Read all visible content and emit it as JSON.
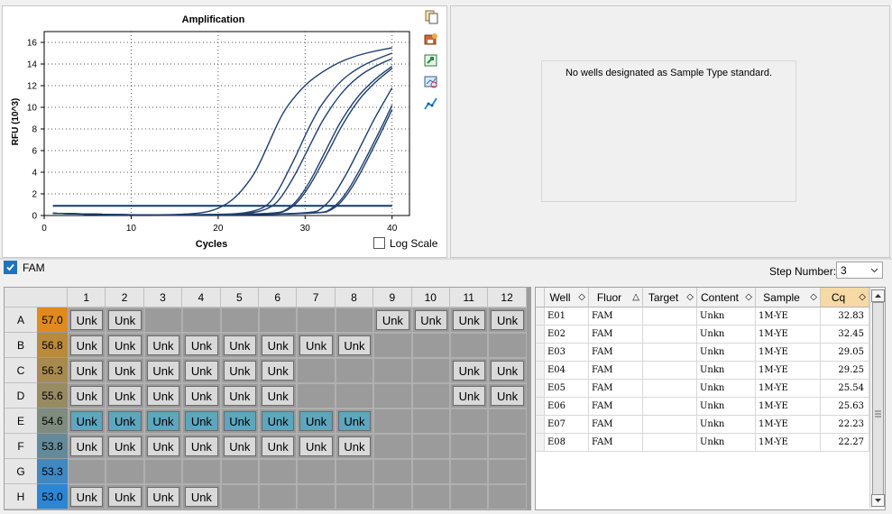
{
  "chart": {
    "title": "Amplification",
    "xlabel": "Cycles",
    "ylabel": "RFU (10^3)",
    "log_scale_label": "Log Scale",
    "log_scale_checked": false
  },
  "chart_data": {
    "type": "line",
    "title": "Amplification",
    "xlabel": "Cycles",
    "ylabel": "RFU (10^3)",
    "xlim": [
      0,
      42
    ],
    "ylim": [
      0,
      17
    ],
    "xticks": [
      0,
      10,
      20,
      30,
      40
    ],
    "yticks": [
      0,
      2,
      4,
      6,
      8,
      10,
      12,
      14,
      16
    ],
    "grid": true,
    "threshold": 0.9,
    "line_color": "#1f3f6f",
    "series": [
      {
        "values": [
          [
            1,
            0.2
          ],
          [
            5,
            0.1
          ],
          [
            10,
            0.05
          ],
          [
            15,
            0.08
          ],
          [
            18,
            0.2
          ],
          [
            20,
            0.6
          ],
          [
            22,
            1.6
          ],
          [
            24,
            3.6
          ],
          [
            25,
            5.2
          ],
          [
            26,
            7.0
          ],
          [
            27,
            8.8
          ],
          [
            28,
            10.2
          ],
          [
            30,
            12.1
          ],
          [
            32,
            13.3
          ],
          [
            34,
            14.2
          ],
          [
            36,
            14.8
          ],
          [
            38,
            15.2
          ],
          [
            40,
            15.5
          ]
        ]
      },
      {
        "values": [
          [
            1,
            0.2
          ],
          [
            10,
            0.05
          ],
          [
            20,
            0.08
          ],
          [
            23,
            0.2
          ],
          [
            25,
            0.6
          ],
          [
            26,
            1.2
          ],
          [
            27,
            2.4
          ],
          [
            28,
            4.0
          ],
          [
            29,
            5.6
          ],
          [
            30,
            7.4
          ],
          [
            31,
            9.0
          ],
          [
            32,
            10.4
          ],
          [
            34,
            12.4
          ],
          [
            36,
            13.6
          ],
          [
            38,
            14.4
          ],
          [
            40,
            15.0
          ]
        ]
      },
      {
        "values": [
          [
            1,
            0.2
          ],
          [
            10,
            0.05
          ],
          [
            20,
            0.08
          ],
          [
            24,
            0.2
          ],
          [
            26,
            0.7
          ],
          [
            27,
            1.4
          ],
          [
            28,
            2.6
          ],
          [
            29,
            4.0
          ],
          [
            30,
            5.6
          ],
          [
            31,
            7.2
          ],
          [
            32,
            8.8
          ],
          [
            34,
            11.2
          ],
          [
            36,
            12.8
          ],
          [
            38,
            13.8
          ],
          [
            40,
            14.5
          ]
        ]
      },
      {
        "values": [
          [
            1,
            0.2
          ],
          [
            10,
            0.05
          ],
          [
            20,
            0.05
          ],
          [
            27,
            0.2
          ],
          [
            28,
            0.6
          ],
          [
            29,
            1.3
          ],
          [
            30,
            2.4
          ],
          [
            31,
            3.8
          ],
          [
            32,
            5.4
          ],
          [
            33,
            7.0
          ],
          [
            34,
            8.6
          ],
          [
            36,
            11.0
          ],
          [
            38,
            12.6
          ],
          [
            40,
            13.8
          ]
        ]
      },
      {
        "values": [
          [
            1,
            0.2
          ],
          [
            10,
            0.05
          ],
          [
            20,
            0.05
          ],
          [
            27,
            0.2
          ],
          [
            28,
            0.5
          ],
          [
            29,
            1.1
          ],
          [
            30,
            2.1
          ],
          [
            31,
            3.4
          ],
          [
            32,
            4.9
          ],
          [
            33,
            6.4
          ],
          [
            34,
            8.0
          ],
          [
            36,
            10.6
          ],
          [
            38,
            12.3
          ],
          [
            40,
            13.6
          ]
        ]
      },
      {
        "values": [
          [
            1,
            0.2
          ],
          [
            10,
            0.05
          ],
          [
            20,
            0.05
          ],
          [
            31,
            0.2
          ],
          [
            32,
            0.7
          ],
          [
            33,
            1.5
          ],
          [
            34,
            2.8
          ],
          [
            35,
            4.2
          ],
          [
            36,
            5.8
          ],
          [
            37,
            7.4
          ],
          [
            38,
            9.0
          ],
          [
            39,
            10.4
          ],
          [
            40,
            11.8
          ]
        ]
      },
      {
        "values": [
          [
            1,
            0.2
          ],
          [
            10,
            0.05
          ],
          [
            20,
            0.05
          ],
          [
            32,
            0.2
          ],
          [
            33,
            0.6
          ],
          [
            34,
            1.3
          ],
          [
            35,
            2.4
          ],
          [
            36,
            3.8
          ],
          [
            37,
            5.3
          ],
          [
            38,
            6.9
          ],
          [
            39,
            8.5
          ],
          [
            40,
            10.2
          ]
        ]
      },
      {
        "values": [
          [
            1,
            0.2
          ],
          [
            10,
            0.05
          ],
          [
            20,
            0.05
          ],
          [
            32,
            0.2
          ],
          [
            33,
            0.5
          ],
          [
            34,
            1.1
          ],
          [
            35,
            2.1
          ],
          [
            36,
            3.4
          ],
          [
            37,
            4.9
          ],
          [
            38,
            6.5
          ],
          [
            39,
            8.1
          ],
          [
            40,
            9.8
          ]
        ]
      }
    ]
  },
  "standard_curve": {
    "message": "No wells designated as Sample Type standard."
  },
  "fluor_filter": {
    "label": "FAM",
    "checked": true
  },
  "step": {
    "label": "Step Number:",
    "value": "3"
  },
  "plate": {
    "columns": [
      "1",
      "2",
      "3",
      "4",
      "5",
      "6",
      "7",
      "8",
      "9",
      "10",
      "11",
      "12"
    ],
    "rows": [
      {
        "label": "A",
        "temp": "57.0",
        "color": "#e08a1e",
        "wells": [
          "Unk",
          "Unk",
          "",
          "",
          "",
          "",
          "",
          "",
          "Unk",
          "Unk",
          "Unk",
          "Unk"
        ]
      },
      {
        "label": "B",
        "temp": "56.8",
        "color": "#b98a3a",
        "wells": [
          "Unk",
          "Unk",
          "Unk",
          "Unk",
          "Unk",
          "Unk",
          "Unk",
          "Unk",
          "",
          "",
          "",
          ""
        ]
      },
      {
        "label": "C",
        "temp": "56.3",
        "color": "#a88a4e",
        "wells": [
          "Unk",
          "Unk",
          "Unk",
          "Unk",
          "Unk",
          "Unk",
          "",
          "",
          "",
          "",
          "Unk",
          "Unk"
        ]
      },
      {
        "label": "D",
        "temp": "55.6",
        "color": "#978b62",
        "wells": [
          "Unk",
          "Unk",
          "Unk",
          "Unk",
          "Unk",
          "Unk",
          "",
          "",
          "",
          "",
          "Unk",
          "Unk"
        ]
      },
      {
        "label": "E",
        "temp": "54.6",
        "color": "#7e8b7e",
        "wells": [
          "Unk",
          "Unk",
          "Unk",
          "Unk",
          "Unk",
          "Unk",
          "Unk",
          "Unk",
          "",
          "",
          "",
          ""
        ],
        "selected": true
      },
      {
        "label": "F",
        "temp": "53.8",
        "color": "#648a9a",
        "wells": [
          "Unk",
          "Unk",
          "Unk",
          "Unk",
          "Unk",
          "Unk",
          "Unk",
          "Unk",
          "",
          "",
          "",
          ""
        ]
      },
      {
        "label": "G",
        "temp": "53.3",
        "color": "#3f88c2",
        "wells": [
          "",
          "",
          "",
          "",
          "",
          "",
          "",
          "",
          "",
          "",
          "",
          ""
        ]
      },
      {
        "label": "H",
        "temp": "53.0",
        "color": "#2b86d6",
        "wells": [
          "Unk",
          "Unk",
          "Unk",
          "Unk",
          "",
          "",
          "",
          "",
          "",
          "",
          "",
          ""
        ]
      }
    ]
  },
  "results": {
    "columns": [
      {
        "label": "Well",
        "sort": "◇"
      },
      {
        "label": "Fluor",
        "sort": "△"
      },
      {
        "label": "Target",
        "sort": "◇"
      },
      {
        "label": "Content",
        "sort": "◇"
      },
      {
        "label": "Sample",
        "sort": "◇"
      },
      {
        "label": "Cq",
        "sort": "◇"
      }
    ],
    "rows": [
      [
        "E01",
        "FAM",
        "",
        "Unkn",
        "1M-YE",
        "32.83"
      ],
      [
        "E02",
        "FAM",
        "",
        "Unkn",
        "1M-YE",
        "32.45"
      ],
      [
        "E03",
        "FAM",
        "",
        "Unkn",
        "1M-YE",
        "29.05"
      ],
      [
        "E04",
        "FAM",
        "",
        "Unkn",
        "1M-YE",
        "29.25"
      ],
      [
        "E05",
        "FAM",
        "",
        "Unkn",
        "1M-YE",
        "25.54"
      ],
      [
        "E06",
        "FAM",
        "",
        "Unkn",
        "1M-YE",
        "25.63"
      ],
      [
        "E07",
        "FAM",
        "",
        "Unkn",
        "1M-YE",
        "22.23"
      ],
      [
        "E08",
        "FAM",
        "",
        "Unkn",
        "1M-YE",
        "22.27"
      ]
    ]
  }
}
